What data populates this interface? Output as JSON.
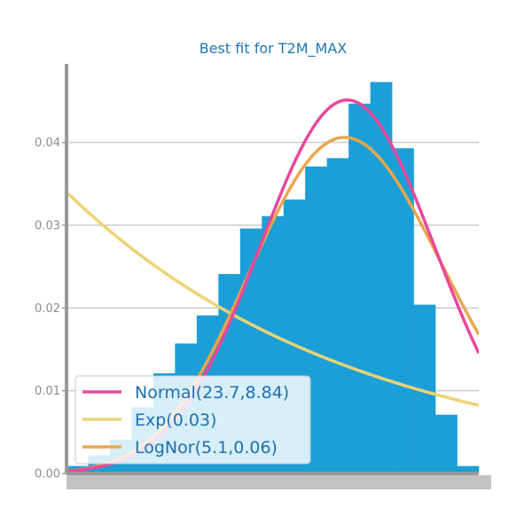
{
  "chart_data": {
    "type": "bar",
    "title": "Best fit for T2M_MAX",
    "xlabel": "",
    "ylabel": "",
    "ylim": [
      0,
      0.0495
    ],
    "yticks": [
      0.0,
      0.01,
      0.02,
      0.03,
      0.04
    ],
    "ytick_labels": [
      "0.00",
      "0.01",
      "0.02",
      "0.03",
      "0.04"
    ],
    "grid": true,
    "histogram": {
      "name": "",
      "color": "#1b9fd6",
      "values": [
        0.0009,
        0.0022,
        0.0041,
        0.008,
        0.0121,
        0.0157,
        0.0191,
        0.0241,
        0.0296,
        0.0311,
        0.0331,
        0.0371,
        0.0381,
        0.0447,
        0.0473,
        0.0393,
        0.0204,
        0.0071,
        0.0009
      ]
    },
    "curves": [
      {
        "name": "Normal(23.7,8.84)",
        "color": "#e8489b",
        "distribution": "normal",
        "mu": 23.7,
        "sigma": 8.84
      },
      {
        "name": "Exp(0.03)",
        "color": "#ecd374",
        "distribution": "exponential",
        "scale": 29.4
      },
      {
        "name": "LogNor(5.1,0.06)",
        "color": "#e8a84a",
        "distribution": "lognormal",
        "mu": 5.1,
        "sigma": 0.06
      }
    ],
    "legend_position": "lower-left"
  }
}
